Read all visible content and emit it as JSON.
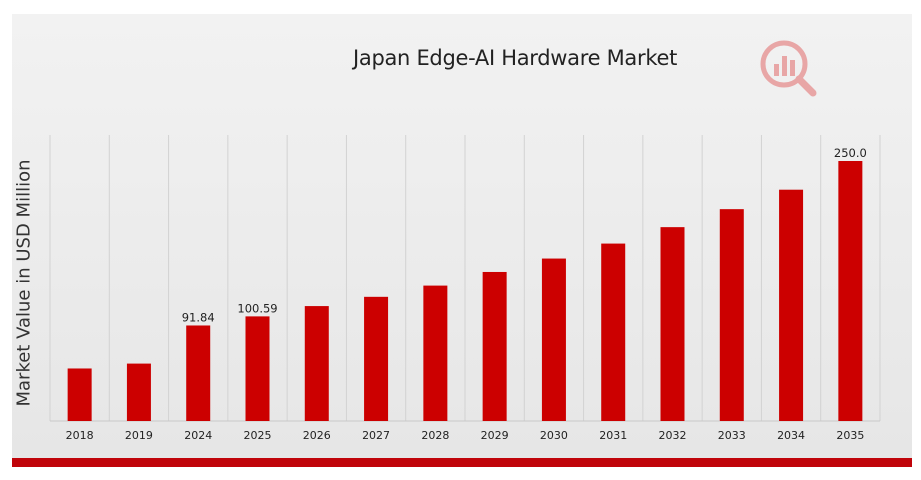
{
  "chart_data": {
    "type": "bar",
    "title": "Japan Edge-AI Hardware Market",
    "xlabel": "",
    "ylabel": "Market Value in USD Million",
    "categories": [
      "2018",
      "2019",
      "2024",
      "2025",
      "2026",
      "2027",
      "2028",
      "2029",
      "2030",
      "2031",
      "2032",
      "2033",
      "2034",
      "2035"
    ],
    "values": [
      50.5,
      55.2,
      91.84,
      100.59,
      110.5,
      119.4,
      130.2,
      143.3,
      156.2,
      170.6,
      186.4,
      203.7,
      222.4,
      250.0
    ],
    "data_labels": {
      "2024": "91.84",
      "2025": "100.59",
      "2035": "250.0"
    },
    "ylim": [
      0,
      250
    ],
    "grid": "vertical",
    "legend": "none",
    "bar_color": "#cc0000"
  },
  "colors": {
    "bar": "#cc0000",
    "accent_band": "#c0040a",
    "grid": "#d2d2d2"
  },
  "logo": {
    "icon": "magnifier-bar-chart-icon"
  }
}
